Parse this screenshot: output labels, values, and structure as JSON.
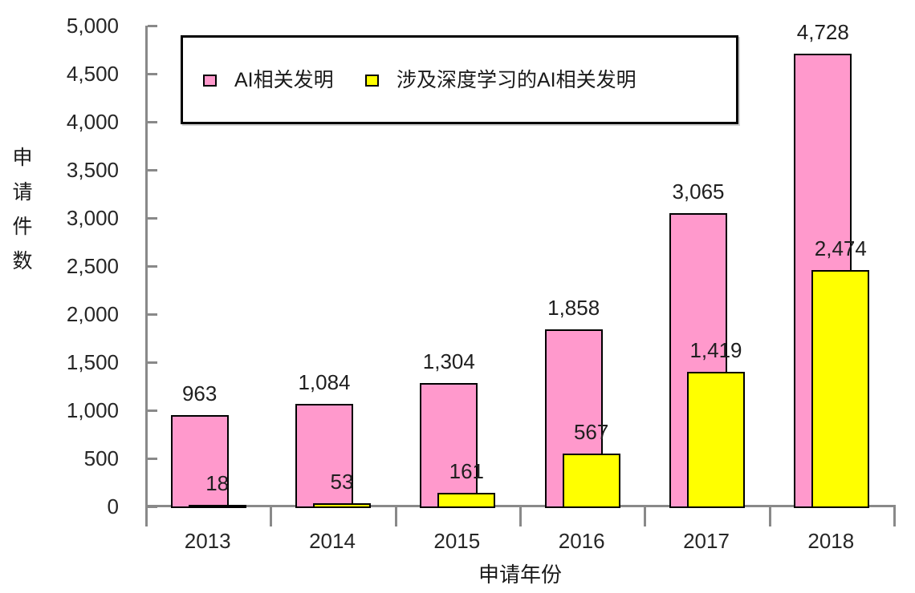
{
  "chart_data": {
    "type": "bar",
    "title": "",
    "xlabel": "申请年份",
    "ylabel": "申请件数",
    "ylim": [
      0,
      5000
    ],
    "ytick_step": 500,
    "ytick_labels": [
      "0",
      "500",
      "1,000",
      "1,500",
      "2,000",
      "2,500",
      "3,000",
      "3,500",
      "4,000",
      "4,500",
      "5,000"
    ],
    "grid": false,
    "legend_position": "top-inside-framed",
    "categories": [
      "2013",
      "2014",
      "2015",
      "2016",
      "2017",
      "2018"
    ],
    "series": [
      {
        "name": "AI相关发明",
        "color": "#FF99CC",
        "border_color": "#000000",
        "values": [
          963,
          1084,
          1304,
          1858,
          3065,
          4728
        ],
        "value_labels": [
          "963",
          "1,084",
          "1,304",
          "1,858",
          "3,065",
          "4,728"
        ]
      },
      {
        "name": "涉及深度学习的AI相关发明",
        "color": "#FFFF00",
        "border_color": "#000000",
        "values": [
          18,
          53,
          161,
          567,
          1419,
          2474
        ],
        "value_labels": [
          "18",
          "53",
          "161",
          "567",
          "1,419",
          "2,474"
        ]
      }
    ],
    "axis_color": "#898989",
    "text_color": "#1a1a1a"
  }
}
